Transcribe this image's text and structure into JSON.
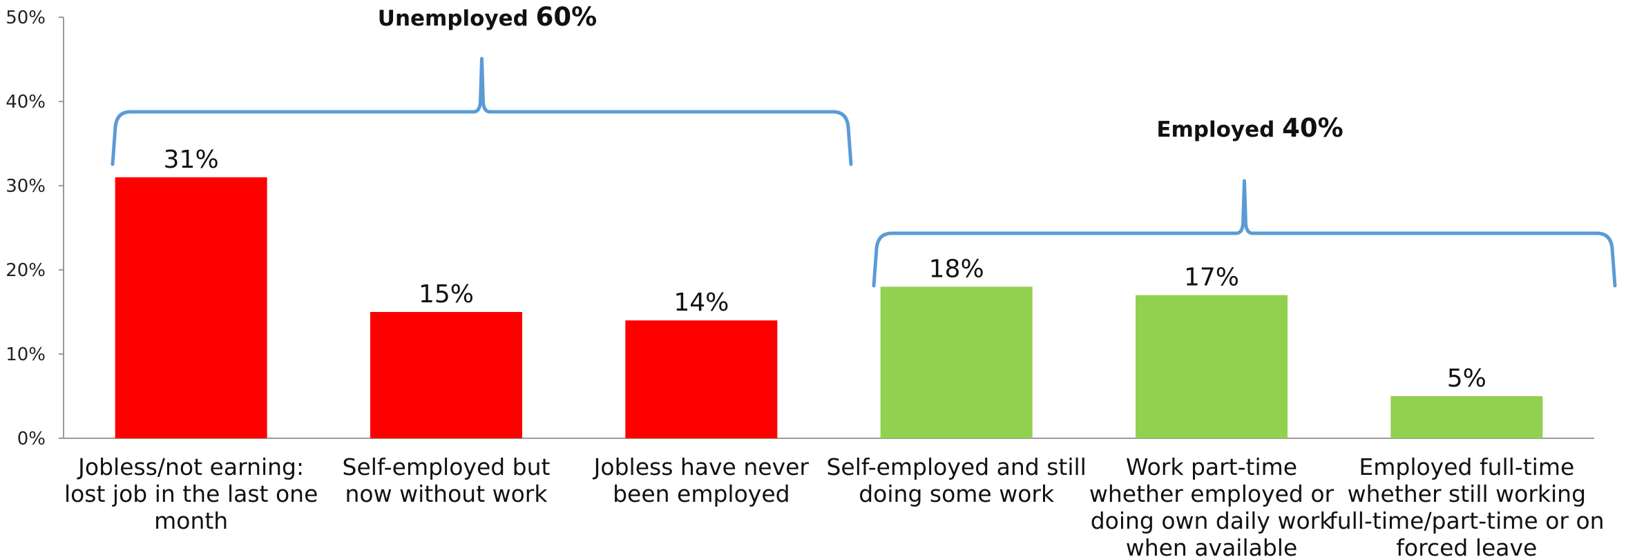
{
  "chart_data": {
    "type": "bar",
    "title": "",
    "xlabel": "",
    "ylabel": "",
    "ylim": [
      0,
      50
    ],
    "yticks": [
      0,
      10,
      20,
      30,
      40,
      50
    ],
    "ytick_labels": [
      "0%",
      "10%",
      "20%",
      "30%",
      "40%",
      "50%"
    ],
    "grid": false,
    "legend": "none",
    "categories": [
      [
        "Jobless/not earning:",
        "lost job in the last one",
        "month"
      ],
      [
        "Self-employed but",
        "now without work"
      ],
      [
        "Jobless have never",
        "been employed"
      ],
      [
        "Self-employed and still",
        "doing some work"
      ],
      [
        "Work part-time",
        "whether employed or",
        "doing own daily work",
        "when available"
      ],
      [
        "Employed full-time",
        "whether still working",
        "full-time/part-time or on",
        "forced leave"
      ]
    ],
    "values": [
      31,
      15,
      14,
      18,
      17,
      5
    ],
    "value_labels": [
      "31%",
      "15%",
      "14%",
      "18%",
      "17%",
      "5%"
    ],
    "bar_colors": [
      "#ff0000",
      "#ff0000",
      "#ff0000",
      "#92d050",
      "#92d050",
      "#92d050"
    ],
    "groups": [
      {
        "label": "Unemployed",
        "value_label": "60%",
        "from": 0,
        "to": 2
      },
      {
        "label": "Employed",
        "value_label": "40%",
        "from": 3,
        "to": 5
      }
    ],
    "colors": {
      "axis": "#9a9a9a",
      "brace": "#5b9bd5"
    }
  }
}
